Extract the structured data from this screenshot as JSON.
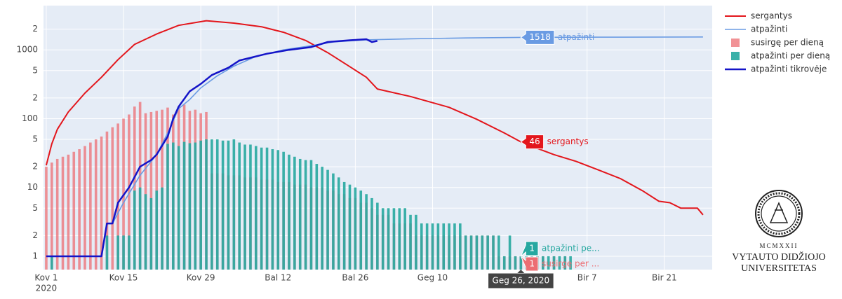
{
  "chart_data": {
    "type": "bar_line",
    "ylog": true,
    "ylim": [
      0.64,
      4400
    ],
    "yticks": [
      1,
      {
        "value": 2,
        "label": "2"
      },
      {
        "value": 5,
        "label": "5"
      },
      10,
      {
        "value": 20,
        "label": "2"
      },
      {
        "value": 50,
        "label": "5"
      },
      100,
      {
        "value": 200,
        "label": "2"
      },
      {
        "value": 500,
        "label": "5"
      },
      1000,
      {
        "value": 2000,
        "label": "2"
      }
    ],
    "xlim": [
      "2020-02-29T12:00:00Z",
      "2020-06-29T16:00:00Z"
    ],
    "xticks": [
      {
        "value": "2020-03-01",
        "label": "Kov 1"
      },
      {
        "value": "2020-03-15",
        "label": "Kov 15"
      },
      {
        "value": "2020-03-29",
        "label": "Kov 29"
      },
      {
        "value": "2020-04-12",
        "label": "Bal 12"
      },
      {
        "value": "2020-04-26",
        "label": "Bal 26"
      },
      {
        "value": "2020-05-10",
        "label": "Geg 10"
      },
      {
        "value": "2020-06-07",
        "label": "Bir 7"
      },
      {
        "value": "2020-06-21",
        "label": "Bir 21"
      }
    ],
    "x_year_label": "2020",
    "grid": true,
    "legend": "right",
    "x": [
      "2020-03-01",
      "2020-03-02",
      "2020-03-03",
      "2020-03-04",
      "2020-03-05",
      "2020-03-06",
      "2020-03-07",
      "2020-03-08",
      "2020-03-09",
      "2020-03-10",
      "2020-03-11",
      "2020-03-12",
      "2020-03-13",
      "2020-03-14",
      "2020-03-15",
      "2020-03-16",
      "2020-03-17",
      "2020-03-18",
      "2020-03-19",
      "2020-03-20",
      "2020-03-21",
      "2020-03-22",
      "2020-03-23",
      "2020-03-24",
      "2020-03-25",
      "2020-03-26",
      "2020-03-27",
      "2020-03-28",
      "2020-03-29",
      "2020-03-30",
      "2020-03-31",
      "2020-04-01",
      "2020-04-02",
      "2020-04-03",
      "2020-04-04",
      "2020-04-05",
      "2020-04-06",
      "2020-04-07",
      "2020-04-08",
      "2020-04-09",
      "2020-04-10",
      "2020-04-11",
      "2020-04-12",
      "2020-04-13",
      "2020-04-14",
      "2020-04-15",
      "2020-04-16",
      "2020-04-17",
      "2020-04-18",
      "2020-04-19",
      "2020-04-20",
      "2020-04-21",
      "2020-04-22",
      "2020-04-23",
      "2020-04-24",
      "2020-04-25",
      "2020-04-26",
      "2020-04-27",
      "2020-04-28",
      "2020-04-29",
      "2020-04-30",
      "2020-05-01",
      "2020-05-02",
      "2020-05-03",
      "2020-05-04",
      "2020-05-05",
      "2020-05-06",
      "2020-05-07",
      "2020-05-08",
      "2020-05-09",
      "2020-05-10",
      "2020-05-11",
      "2020-05-12",
      "2020-05-13",
      "2020-05-14",
      "2020-05-15",
      "2020-05-16",
      "2020-05-17",
      "2020-05-18",
      "2020-05-19",
      "2020-05-20",
      "2020-05-21",
      "2020-05-22",
      "2020-05-23",
      "2020-05-24",
      "2020-05-25",
      "2020-05-26",
      "2020-05-27",
      "2020-05-28",
      "2020-05-29",
      "2020-05-30",
      "2020-05-31",
      "2020-06-01",
      "2020-06-02",
      "2020-06-03",
      "2020-06-04"
    ],
    "series": [
      {
        "name": "sergantys",
        "type": "line",
        "color": "#e3161c",
        "width": 2,
        "x": [
          "2020-03-01",
          "2020-03-02",
          "2020-03-03",
          "2020-03-05",
          "2020-03-08",
          "2020-03-11",
          "2020-03-14",
          "2020-03-17",
          "2020-03-21",
          "2020-03-25",
          "2020-03-30",
          "2020-04-04",
          "2020-04-09",
          "2020-04-13",
          "2020-04-17",
          "2020-04-21",
          "2020-04-25",
          "2020-04-28",
          "2020-04-30",
          "2020-05-06",
          "2020-05-13",
          "2020-05-18",
          "2020-05-23",
          "2020-05-26",
          "2020-05-29",
          "2020-06-01",
          "2020-06-05",
          "2020-06-09",
          "2020-06-13",
          "2020-06-17",
          "2020-06-20",
          "2020-06-22",
          "2020-06-24",
          "2020-06-27",
          "2020-06-28"
        ],
        "values": [
          21,
          43,
          70,
          125,
          235,
          400,
          720,
          1200,
          1700,
          2270,
          2650,
          2450,
          2170,
          1800,
          1370,
          910,
          570,
          400,
          270,
          210,
          146,
          98,
          62,
          46,
          37,
          30,
          24,
          18,
          13.5,
          9,
          6.3,
          6,
          5,
          5,
          4
        ]
      },
      {
        "name": "atpažinti",
        "type": "line",
        "color": "#6a9be3",
        "width": 1.6,
        "x": [
          "2020-03-13",
          "2020-03-15",
          "2020-03-18",
          "2020-03-21",
          "2020-03-23",
          "2020-03-25",
          "2020-03-27",
          "2020-03-29",
          "2020-04-01",
          "2020-04-04",
          "2020-04-08",
          "2020-04-13",
          "2020-04-18",
          "2020-04-22",
          "2020-04-28",
          "2020-05-06",
          "2020-05-16",
          "2020-05-26",
          "2020-06-09",
          "2020-06-28"
        ],
        "values": [
          3,
          6,
          15,
          30,
          62,
          140,
          190,
          280,
          420,
          580,
          800,
          1000,
          1150,
          1300,
          1400,
          1450,
          1490,
          1518,
          1530,
          1540
        ]
      },
      {
        "name": "susirgę per dieną",
        "type": "bar",
        "color": "rgba(236,110,115,0.75)",
        "hover_label": "susirgę per ...",
        "values": [
          20,
          23,
          26,
          28,
          30,
          33,
          36,
          40,
          45,
          50,
          55,
          65,
          75,
          85,
          100,
          115,
          150,
          175,
          120,
          125,
          130,
          135,
          145,
          115,
          150,
          160,
          130,
          135,
          120,
          125,
          16,
          16,
          16,
          15,
          15,
          15,
          14,
          14,
          14,
          13,
          13,
          13,
          12,
          12,
          12,
          11,
          11,
          11,
          10,
          10,
          10,
          9,
          9,
          8,
          8,
          7,
          7,
          6,
          6,
          5,
          4,
          4,
          4,
          3,
          3,
          3,
          3,
          2,
          2,
          2,
          2,
          2,
          2,
          2,
          2,
          2,
          2,
          2,
          2,
          2,
          2,
          2,
          1,
          1,
          1,
          1,
          1,
          1,
          1,
          1,
          1,
          null,
          1,
          null,
          1,
          null
        ]
      },
      {
        "name": "atpažinti per dieną",
        "type": "bar",
        "color": "rgba(38,168,160,0.9)",
        "hover_label": "atpažinti pe...",
        "values": [
          null,
          1,
          null,
          null,
          null,
          null,
          null,
          null,
          null,
          null,
          null,
          2,
          null,
          2,
          2,
          2,
          9,
          10,
          8,
          7,
          9,
          10,
          43,
          45,
          40,
          46,
          44,
          45,
          48,
          50,
          50,
          50,
          48,
          48,
          50,
          45,
          42,
          42,
          40,
          38,
          38,
          36,
          35,
          33,
          30,
          28,
          26,
          25,
          25,
          22,
          20,
          18,
          16,
          14,
          12,
          11,
          10,
          9,
          8,
          7,
          6,
          5,
          5,
          5,
          5,
          5,
          4,
          4,
          3,
          3,
          3,
          3,
          3,
          3,
          3,
          3,
          2,
          2,
          2,
          2,
          2,
          2,
          2,
          1,
          2,
          1,
          1,
          1,
          1,
          1,
          1,
          1,
          1,
          1,
          1,
          1
        ]
      },
      {
        "name": "atpažinti tikrovėje",
        "type": "line",
        "color": "#1414c8",
        "width": 2.5,
        "x": [
          "2020-03-01",
          "2020-03-11",
          "2020-03-12",
          "2020-03-13",
          "2020-03-14",
          "2020-03-16",
          "2020-03-18",
          "2020-03-20",
          "2020-03-21",
          "2020-03-23",
          "2020-03-24",
          "2020-03-25",
          "2020-03-27",
          "2020-03-29",
          "2020-03-31",
          "2020-04-03",
          "2020-04-05",
          "2020-04-10",
          "2020-04-14",
          "2020-04-18",
          "2020-04-21",
          "2020-04-25",
          "2020-04-28",
          "2020-04-29",
          "2020-04-30"
        ],
        "values": [
          1,
          1,
          3,
          3,
          6,
          10,
          20,
          25,
          30,
          55,
          100,
          150,
          250,
          320,
          430,
          550,
          700,
          880,
          1000,
          1100,
          1300,
          1380,
          1430,
          1300,
          1350
        ]
      }
    ],
    "hover": {
      "x": "2020-05-26",
      "label": "Geg 26, 2020"
    },
    "logo": {
      "year": "MCMXXII",
      "line1": "VYTAUTO DIDŽIOJO",
      "line2": "UNIVERSITETAS"
    }
  }
}
